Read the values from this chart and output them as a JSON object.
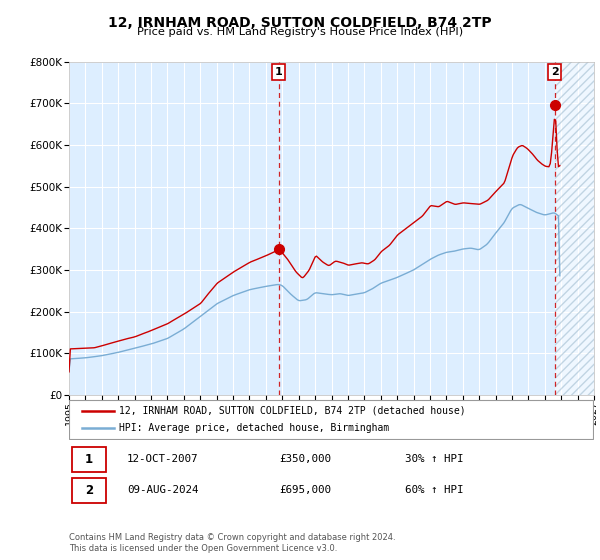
{
  "title": "12, IRNHAM ROAD, SUTTON COLDFIELD, B74 2TP",
  "subtitle": "Price paid vs. HM Land Registry's House Price Index (HPI)",
  "legend_line1": "12, IRNHAM ROAD, SUTTON COLDFIELD, B74 2TP (detached house)",
  "legend_line2": "HPI: Average price, detached house, Birmingham",
  "annotation1_date": "12-OCT-2007",
  "annotation1_price": "£350,000",
  "annotation1_hpi": "30% ↑ HPI",
  "annotation2_date": "09-AUG-2024",
  "annotation2_price": "£695,000",
  "annotation2_hpi": "60% ↑ HPI",
  "footer": "Contains HM Land Registry data © Crown copyright and database right 2024.\nThis data is licensed under the Open Government Licence v3.0.",
  "red_color": "#cc0000",
  "blue_color": "#7aadd4",
  "bg_color": "#ddeeff",
  "grid_color": "#ffffff",
  "ylim": [
    0,
    800000
  ],
  "xlim_start": 1995.0,
  "xlim_end": 2027.0,
  "marker1_x": 2007.79,
  "marker1_y": 350000,
  "marker2_x": 2024.61,
  "marker2_y": 695000,
  "vline1_x": 2007.79,
  "vline2_x": 2024.61,
  "yticks": [
    0,
    100000,
    200000,
    300000,
    400000,
    500000,
    600000,
    700000,
    800000
  ],
  "ytick_labels": [
    "£0",
    "£100K",
    "£200K",
    "£300K",
    "£400K",
    "£500K",
    "£600K",
    "£700K",
    "£800K"
  ]
}
